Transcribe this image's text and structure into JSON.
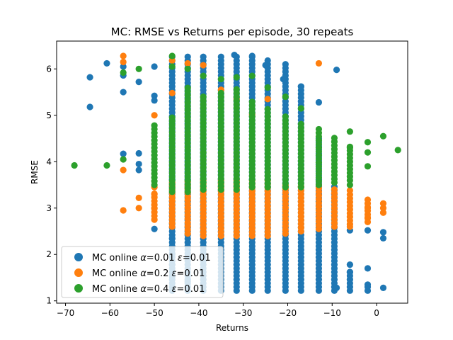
{
  "chart_data": {
    "type": "scatter",
    "title": "MC: RMSE vs Returns per episode, 30 repeats",
    "xlabel": "Returns",
    "ylabel": "RMSE",
    "xlim": [
      -72,
      7
    ],
    "ylim": [
      0.95,
      6.6
    ],
    "xticks": [
      -70,
      -60,
      -50,
      -40,
      -30,
      -20,
      -10,
      0
    ],
    "xtick_labels": [
      "−70",
      "−60",
      "−50",
      "−40",
      "−30",
      "−20",
      "−10",
      "0"
    ],
    "yticks": [
      1,
      2,
      3,
      4,
      5,
      6
    ],
    "ytick_labels": [
      "1",
      "2",
      "3",
      "4",
      "5",
      "6"
    ],
    "grid": false,
    "legend_position": "bottom-left",
    "series": [
      {
        "name": "MC online α=0.01 ε=0.01",
        "legend": {
          "prefix": "MC online ",
          "a_sym": "α",
          "a_val": "=0.01 ",
          "e_sym": "ε",
          "e_val": "=0.01"
        },
        "color": "#1f77b4",
        "points": [
          [
            -64.5,
            5.82
          ],
          [
            -64.5,
            5.18
          ],
          [
            -60.7,
            6.12
          ],
          [
            -57.0,
            4.17
          ],
          [
            -57.0,
            5.86
          ],
          [
            -57.0,
            6.05
          ],
          [
            -57.0,
            5.5
          ],
          [
            -53.5,
            5.72
          ],
          [
            -53.5,
            3.82
          ],
          [
            -53.5,
            4.18
          ],
          [
            -53.5,
            3.95
          ],
          [
            -50.0,
            6.05
          ],
          [
            -50.0,
            5.42
          ],
          [
            -50.0,
            5.32
          ],
          [
            -50.0,
            2.55
          ],
          [
            -46.0,
            2.35
          ],
          [
            -46.0,
            2.0
          ],
          [
            -46.0,
            1.78
          ],
          [
            -46.0,
            1.52
          ],
          [
            -42.5,
            1.95
          ],
          [
            -42.5,
            1.42
          ],
          [
            -32.0,
            6.3
          ],
          [
            -28.0,
            6.28
          ],
          [
            -25.0,
            6.08
          ],
          [
            -21.0,
            5.78
          ],
          [
            -17.0,
            5.62
          ],
          [
            -13.0,
            5.28
          ],
          [
            -9.0,
            5.98
          ],
          [
            -9.0,
            1.28
          ],
          [
            -6.0,
            2.52
          ],
          [
            -6.0,
            1.78
          ],
          [
            -6.0,
            1.62
          ],
          [
            -2.0,
            1.7
          ],
          [
            -2.0,
            1.35
          ],
          [
            -2.0,
            2.52
          ],
          [
            1.5,
            1.28
          ],
          [
            1.5,
            2.35
          ],
          [
            1.5,
            2.48
          ]
        ],
        "dense_columns": [
          {
            "x": -46,
            "from": 1.22,
            "to": 6.3
          },
          {
            "x": -42.5,
            "from": 1.22,
            "to": 6.28
          },
          {
            "x": -39,
            "from": 1.22,
            "to": 6.3
          },
          {
            "x": -35,
            "from": 1.22,
            "to": 6.3
          },
          {
            "x": -31.5,
            "from": 1.22,
            "to": 6.28
          },
          {
            "x": -28,
            "from": 1.22,
            "to": 6.3
          },
          {
            "x": -24.5,
            "from": 1.22,
            "to": 6.2
          },
          {
            "x": -20.5,
            "from": 1.22,
            "to": 6.1
          },
          {
            "x": -17,
            "from": 1.22,
            "to": 5.62
          },
          {
            "x": -13,
            "from": 1.22,
            "to": 4.5
          },
          {
            "x": -9.5,
            "from": 1.22,
            "to": 3.5
          },
          {
            "x": -6,
            "from": 1.22,
            "to": 1.62
          },
          {
            "x": -2,
            "from": 1.22,
            "to": 1.35
          }
        ]
      },
      {
        "name": "MC online α=0.2 ε=0.01",
        "legend": {
          "prefix": "MC online ",
          "a_sym": "α",
          "a_val": "=0.2 ",
          "e_sym": "ε",
          "e_val": "=0.01"
        },
        "color": "#ff7f0e",
        "points": [
          [
            -57.0,
            6.28
          ],
          [
            -57.0,
            6.15
          ],
          [
            -57.0,
            3.82
          ],
          [
            -57.0,
            2.95
          ],
          [
            -53.5,
            3.22
          ],
          [
            -53.5,
            3.0
          ],
          [
            -50.0,
            5.0
          ],
          [
            -50.0,
            3.45
          ],
          [
            -50.0,
            3.3
          ],
          [
            -50.0,
            3.0
          ],
          [
            -46.0,
            6.18
          ],
          [
            -46.0,
            5.48
          ],
          [
            -46.0,
            3.55
          ],
          [
            -42.5,
            6.12
          ],
          [
            -39.0,
            6.08
          ],
          [
            -35.0,
            5.55
          ],
          [
            -31.5,
            5.35
          ],
          [
            -28.0,
            5.02
          ],
          [
            -24.5,
            5.35
          ],
          [
            -13.0,
            6.12
          ],
          [
            -13.0,
            3.5
          ],
          [
            -6.0,
            3.38
          ],
          [
            -6.0,
            2.6
          ],
          [
            -2.0,
            3.0
          ],
          [
            -2.0,
            2.8
          ],
          [
            1.5,
            3.1
          ],
          [
            1.5,
            3.0
          ],
          [
            1.5,
            2.9
          ]
        ],
        "dense_columns": [
          {
            "x": -50,
            "from": 2.75,
            "to": 3.35
          },
          {
            "x": -46,
            "from": 2.6,
            "to": 3.55
          },
          {
            "x": -42.5,
            "from": 2.45,
            "to": 3.6
          },
          {
            "x": -39,
            "from": 2.4,
            "to": 3.6
          },
          {
            "x": -35,
            "from": 2.4,
            "to": 3.6
          },
          {
            "x": -31.5,
            "from": 2.4,
            "to": 3.6
          },
          {
            "x": -28,
            "from": 2.4,
            "to": 3.6
          },
          {
            "x": -24.5,
            "from": 2.4,
            "to": 3.6
          },
          {
            "x": -20.5,
            "from": 2.45,
            "to": 3.55
          },
          {
            "x": -17,
            "from": 2.5,
            "to": 3.5
          },
          {
            "x": -13,
            "from": 2.55,
            "to": 3.45
          },
          {
            "x": -9.5,
            "from": 2.6,
            "to": 3.4
          },
          {
            "x": -6,
            "from": 2.65,
            "to": 3.3
          },
          {
            "x": -2,
            "from": 2.7,
            "to": 3.2
          }
        ]
      },
      {
        "name": "MC online α=0.4 ε=0.01",
        "legend": {
          "prefix": "MC online ",
          "a_sym": "α",
          "a_val": "=0.4 ",
          "e_sym": "ε",
          "e_val": "=0.01"
        },
        "color": "#2ca02c",
        "points": [
          [
            -68.0,
            3.92
          ],
          [
            -60.7,
            3.92
          ],
          [
            -57.0,
            5.92
          ],
          [
            -57.0,
            4.05
          ],
          [
            -53.5,
            6.0
          ],
          [
            -46.0,
            6.28
          ],
          [
            -46.0,
            6.05
          ],
          [
            -42.5,
            6.0
          ],
          [
            -39.0,
            5.85
          ],
          [
            -35.0,
            5.78
          ],
          [
            -31.5,
            5.82
          ],
          [
            -28.0,
            5.85
          ],
          [
            -24.5,
            5.6
          ],
          [
            -20.5,
            5.4
          ],
          [
            -17.0,
            5.15
          ],
          [
            -6.0,
            4.65
          ],
          [
            -6.0,
            4.3
          ],
          [
            -6.0,
            3.5
          ],
          [
            -2.0,
            4.42
          ],
          [
            -2.0,
            4.2
          ],
          [
            -2.0,
            3.9
          ],
          [
            1.5,
            4.55
          ],
          [
            4.8,
            4.25
          ]
        ],
        "dense_columns": [
          {
            "x": -50,
            "from": 3.5,
            "to": 4.8
          },
          {
            "x": -46,
            "from": 3.35,
            "to": 5.0
          },
          {
            "x": -42.5,
            "from": 3.35,
            "to": 5.6
          },
          {
            "x": -39,
            "from": 3.4,
            "to": 5.4
          },
          {
            "x": -35,
            "from": 3.4,
            "to": 5.5
          },
          {
            "x": -31.5,
            "from": 3.4,
            "to": 5.6
          },
          {
            "x": -28,
            "from": 3.45,
            "to": 5.3
          },
          {
            "x": -24.5,
            "from": 3.45,
            "to": 5.2
          },
          {
            "x": -20.5,
            "from": 3.45,
            "to": 5.0
          },
          {
            "x": -17,
            "from": 3.45,
            "to": 4.85
          },
          {
            "x": -13,
            "from": 3.5,
            "to": 4.7
          },
          {
            "x": -9.5,
            "from": 3.55,
            "to": 4.55
          },
          {
            "x": -6,
            "from": 3.6,
            "to": 4.35
          }
        ]
      }
    ]
  }
}
